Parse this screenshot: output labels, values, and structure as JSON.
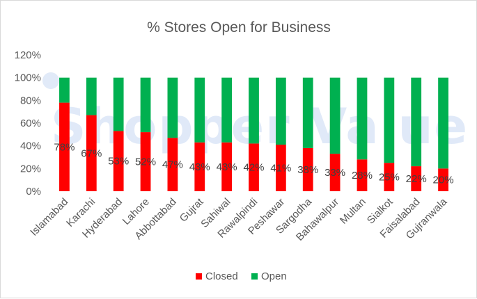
{
  "chart_data": {
    "type": "bar",
    "stacked": true,
    "title": "% Stores Open for Business",
    "categories": [
      "Islamabad",
      "Karachi",
      "Hyderabad",
      "Lahore",
      "Abbottabad",
      "Gujrat",
      "Sahiwal",
      "Rawalpindi",
      "Peshawar",
      "Sargodha",
      "Bahawalpur",
      "Multan",
      "Sialkot",
      "Faisalabad",
      "Gujranwala"
    ],
    "series": [
      {
        "name": "Closed",
        "color": "#ff0000",
        "values": [
          78,
          67,
          53,
          52,
          47,
          43,
          43,
          42,
          41,
          38,
          33,
          28,
          25,
          22,
          20
        ],
        "labels": [
          "78%",
          "67%",
          "53%",
          "52%",
          "47%",
          "43%",
          "43%",
          "42%",
          "41%",
          "38%",
          "33%",
          "28%",
          "25%",
          "22%",
          "20%"
        ]
      },
      {
        "name": "Open",
        "color": "#00b050",
        "values": [
          22,
          33,
          47,
          48,
          53,
          57,
          57,
          58,
          59,
          62,
          67,
          72,
          75,
          78,
          80
        ]
      }
    ],
    "ylim": [
      0,
      120
    ],
    "yticks": [
      0,
      20,
      40,
      60,
      80,
      100,
      120
    ],
    "ytick_labels": [
      "0%",
      "20%",
      "40%",
      "60%",
      "80%",
      "100%",
      "120%"
    ],
    "grid": false,
    "legend": "bottom",
    "xlabel": "",
    "ylabel": ""
  },
  "watermark": {
    "text": "Shopper Value",
    "color": "#bcd0f0"
  }
}
